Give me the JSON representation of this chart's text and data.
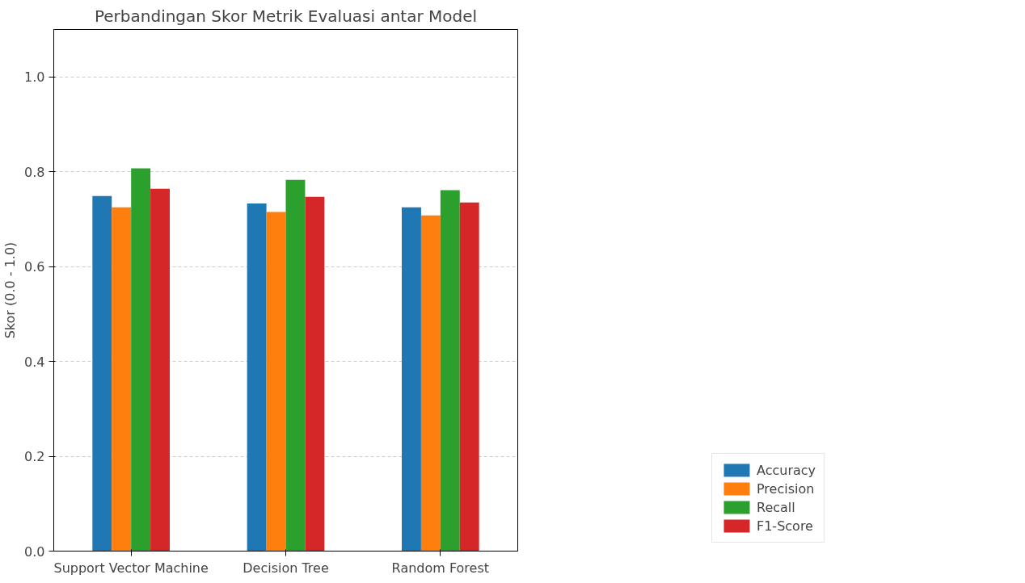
{
  "chart_data": {
    "type": "bar",
    "title": "Perbandingan Skor Metrik Evaluasi antar Model",
    "ylabel": "Skor (0.0 - 1.0)",
    "categories": [
      "Support Vector Machine",
      "Decision Tree",
      "Random Forest"
    ],
    "series": [
      {
        "name": "Accuracy",
        "color": "#1f77b4",
        "values": [
          0.749,
          0.733,
          0.725
        ]
      },
      {
        "name": "Precision",
        "color": "#ff7f0e",
        "values": [
          0.725,
          0.715,
          0.708
        ]
      },
      {
        "name": "Recall",
        "color": "#2ca02c",
        "values": [
          0.807,
          0.783,
          0.761
        ]
      },
      {
        "name": "F1-Score",
        "color": "#d62728",
        "values": [
          0.764,
          0.747,
          0.735
        ]
      }
    ],
    "ylim": [
      0,
      1.1
    ],
    "yticks": [
      {
        "value": 0,
        "label": "0.0"
      },
      {
        "value": 0.2,
        "label": "0.2"
      },
      {
        "value": 0.4,
        "label": "0.4"
      },
      {
        "value": 0.6,
        "label": "0.6"
      },
      {
        "value": 0.8,
        "label": "0.8"
      },
      {
        "value": 1.0,
        "label": "1.0"
      }
    ],
    "grid": "y",
    "legend": "bottom right"
  }
}
